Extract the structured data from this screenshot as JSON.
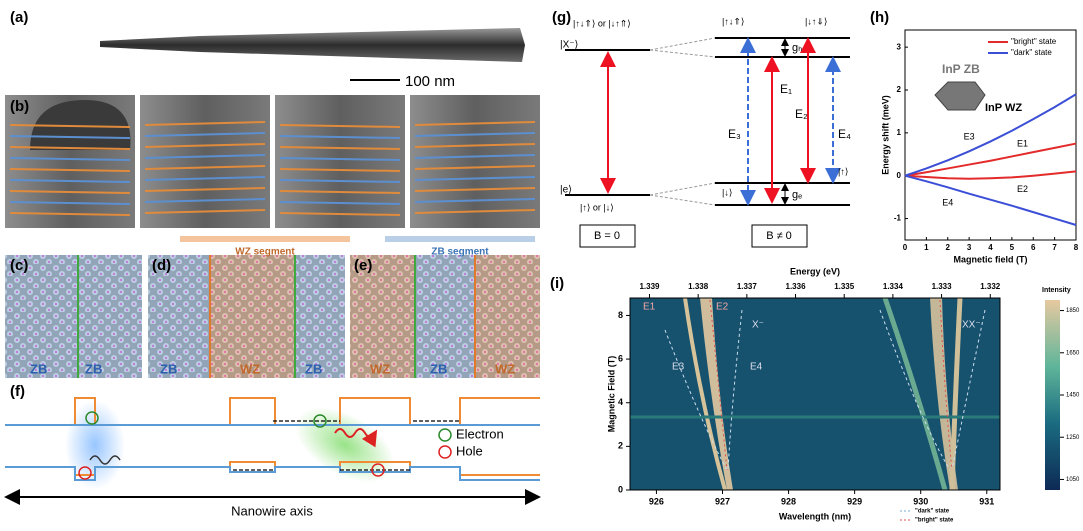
{
  "figure": {
    "a": {
      "label": "(a)",
      "scale_bar": "100 nm"
    },
    "b": {
      "label": "(b)",
      "legend": [
        "WZ segment",
        "ZB segment"
      ]
    },
    "c": {
      "label": "(c)",
      "segments": [
        "ZB",
        "ZB"
      ]
    },
    "d": {
      "label": "(d)",
      "segments": [
        "ZB",
        "WZ",
        "ZB"
      ]
    },
    "e": {
      "label": "(e)",
      "segments": [
        "WZ",
        "ZB",
        "WZ"
      ]
    },
    "f": {
      "label": "(f)",
      "legend": [
        "Electron",
        "Hole"
      ],
      "axis_label": "Nanowire axis"
    },
    "g": {
      "label": "(g)",
      "trion": "|X⁻⟩",
      "trion_states": "|↑↓⇑⟩ or |↓↑⇑⟩",
      "electron": "|e⟩",
      "electron_states": "|↑⟩ or |↓⟩",
      "hole_up": "|↑↓⇑⟩",
      "hole_down": "|↓↑⇓⟩",
      "g_h": "gₕ",
      "g_e": "gₑ",
      "e_up": "|↑⟩",
      "e_down": "|↓⟩",
      "transitions": [
        "E₁",
        "E₂",
        "E₃",
        "E₄"
      ],
      "b_zero": "B = 0",
      "b_field": "B ≠ 0"
    },
    "h": {
      "label": "(h)",
      "type": "line",
      "inset": [
        "InP ZB",
        "InP WZ"
      ],
      "xlabel": "Magnetic field (T)",
      "ylabel": "Energy shift (meV)",
      "x": [
        0,
        1,
        2,
        3,
        4,
        5,
        6,
        7,
        8
      ],
      "series": [
        {
          "name": "E1",
          "color": "#e32b2b",
          "values": [
            0,
            0.08,
            0.17,
            0.26,
            0.35,
            0.45,
            0.55,
            0.65,
            0.75
          ]
        },
        {
          "name": "E2",
          "color": "#e32b2b",
          "values": [
            0,
            -0.03,
            -0.06,
            -0.07,
            -0.06,
            -0.04,
            0,
            0.05,
            0.1
          ]
        },
        {
          "name": "E3",
          "color": "#3b4fd6",
          "values": [
            0,
            0.17,
            0.36,
            0.57,
            0.8,
            1.05,
            1.32,
            1.6,
            1.9
          ]
        },
        {
          "name": "E4",
          "color": "#3b4fd6",
          "values": [
            0,
            -0.13,
            -0.27,
            -0.42,
            -0.56,
            -0.7,
            -0.85,
            -1.0,
            -1.15
          ]
        }
      ],
      "legend": [
        {
          "name": "\"bright\" state",
          "color": "#e32b2b"
        },
        {
          "name": "\"dark\" state",
          "color": "#3b4fd6"
        }
      ],
      "xlim": [
        0,
        8
      ],
      "xticks": [
        0,
        1,
        2,
        3,
        4,
        5,
        6,
        7,
        8
      ],
      "ylim": [
        -1.5,
        3.4
      ],
      "yticks": [
        -1,
        0,
        1,
        2,
        3
      ]
    },
    "i": {
      "label": "(i)",
      "top_label": "Energy (eV)",
      "xlabel": "Wavelength (nm)",
      "ylabel": "Magnetic Field (T)",
      "colorbar_label": "Intensity",
      "lines": [
        "E1",
        "E2",
        "X⁻",
        "XX⁻",
        "E3",
        "E4"
      ],
      "legend": [
        "\"dark\" state",
        "\"bright\" state"
      ],
      "xlim": [
        925.6,
        931.2
      ],
      "xticks": [
        926,
        927,
        928,
        929,
        930,
        931
      ],
      "x2lim": [
        1.3394,
        1.3318
      ],
      "x2ticks": [
        1.339,
        1.338,
        1.337,
        1.336,
        1.335,
        1.334,
        1.333,
        1.332
      ],
      "ylim": [
        0,
        8.8
      ],
      "yticks": [
        0,
        2,
        4,
        6,
        8
      ],
      "clim": [
        1000,
        1900
      ],
      "cticks": [
        1050,
        1250,
        1450,
        1650,
        1850
      ]
    }
  }
}
